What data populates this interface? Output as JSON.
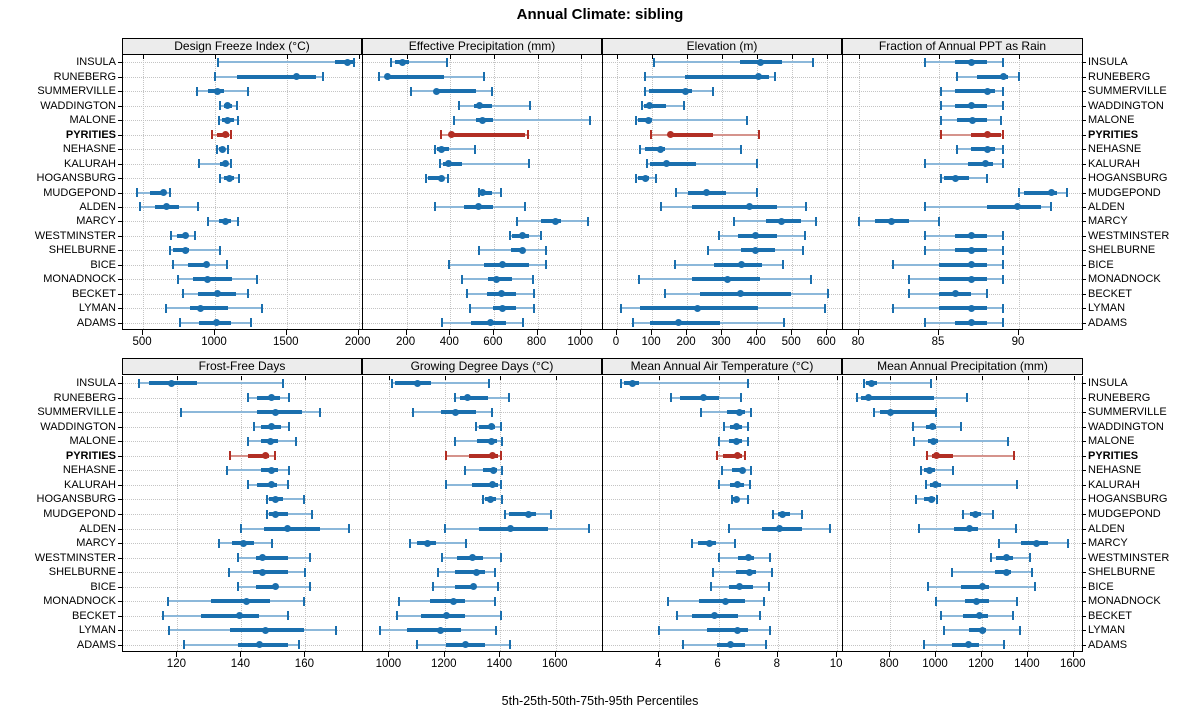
{
  "title": "Annual Climate: sibling",
  "caption": "5th-25th-50th-75th-95th Percentiles",
  "stations": [
    "INSULA",
    "RUNEBERG",
    "SUMMERVILLE",
    "WADDINGTON",
    "MALONE",
    "PYRITIES",
    "NEHASNE",
    "KALURAH",
    "HOGANSBURG",
    "MUDGEPOND",
    "ALDEN",
    "MARCY",
    "WESTMINSTER",
    "SHELBURNE",
    "BICE",
    "MONADNOCK",
    "BECKET",
    "LYMAN",
    "ADAMS"
  ],
  "highlight_station": "PYRITIES",
  "percentile_labels": [
    "5th",
    "25th",
    "50th",
    "75th",
    "95th"
  ],
  "colors": {
    "blue_main": "#1a6fae",
    "blue_light": "#8cb8da",
    "red_main": "#b22e24",
    "red_light": "#d5938c",
    "header_bg": "#ececec",
    "grid": "#c4c4c4",
    "border": "#000000"
  },
  "chart_data": [
    {
      "type": "scatter",
      "title": "Design Freeze Index (°C)",
      "row": 0,
      "col": 0,
      "xlim": [
        360,
        2030
      ],
      "xticks": [
        500,
        1000,
        1500,
        2000
      ],
      "values": [
        [
          1020,
          1835,
          1920,
          1960,
          1965
        ],
        [
          1000,
          1155,
          1570,
          1705,
          1755
        ],
        [
          875,
          950,
          1020,
          1060,
          1230
        ],
        [
          1035,
          1065,
          1090,
          1120,
          1155
        ],
        [
          1030,
          1050,
          1085,
          1130,
          1160
        ],
        [
          980,
          1015,
          1075,
          1095,
          1110
        ],
        [
          1015,
          1025,
          1050,
          1070,
          1090
        ],
        [
          890,
          1035,
          1070,
          1090,
          1110
        ],
        [
          1035,
          1060,
          1100,
          1130,
          1165
        ],
        [
          460,
          545,
          640,
          660,
          685
        ],
        [
          480,
          585,
          660,
          750,
          885
        ],
        [
          950,
          1025,
          1075,
          1110,
          1160
        ],
        [
          695,
          735,
          795,
          815,
          860
        ],
        [
          690,
          710,
          795,
          820,
          1035
        ],
        [
          710,
          815,
          940,
          950,
          1085
        ],
        [
          745,
          845,
          950,
          1120,
          1290
        ],
        [
          775,
          885,
          1015,
          1145,
          1230
        ],
        [
          660,
          825,
          900,
          1090,
          1330
        ],
        [
          755,
          890,
          1010,
          1110,
          1250
        ]
      ]
    },
    {
      "type": "scatter",
      "title": "Effective Precipitation (mm)",
      "row": 0,
      "col": 1,
      "xlim": [
        0,
        1100
      ],
      "xticks": [
        200,
        400,
        600,
        800,
        1000
      ],
      "values": [
        [
          129,
          147,
          182,
          212,
          383
        ],
        [
          75,
          105,
          110,
          373,
          556
        ],
        [
          218,
          330,
          336,
          516,
          591
        ],
        [
          438,
          508,
          534,
          590,
          764
        ],
        [
          418,
          516,
          546,
          598,
          1042
        ],
        [
          358,
          402,
          407,
          744,
          756
        ],
        [
          332,
          338,
          362,
          392,
          513
        ],
        [
          353,
          365,
          392,
          456,
          759
        ],
        [
          290,
          298,
          361,
          365,
          388
        ],
        [
          531,
          534,
          549,
          591,
          633
        ],
        [
          332,
          463,
          528,
          598,
          741
        ],
        [
          708,
          816,
          884,
          907,
          1030
        ],
        [
          674,
          684,
          729,
          759,
          816
        ],
        [
          531,
          678,
          729,
          744,
          839
        ],
        [
          392,
          553,
          639,
          759,
          839
        ],
        [
          456,
          573,
          613,
          684,
          779
        ],
        [
          478,
          568,
          633,
          699,
          783
        ],
        [
          489,
          594,
          639,
          699,
          786
        ],
        [
          362,
          493,
          583,
          654,
          734
        ]
      ]
    },
    {
      "type": "scatter",
      "title": "Elevation (m)",
      "row": 0,
      "col": 2,
      "xlim": [
        -40,
        645
      ],
      "xticks": [
        0,
        100,
        200,
        300,
        400,
        500,
        600
      ],
      "values": [
        [
          105,
          350,
          410,
          470,
          560
        ],
        [
          80,
          195,
          405,
          435,
          450
        ],
        [
          80,
          90,
          195,
          215,
          275
        ],
        [
          70,
          77,
          93,
          140,
          190
        ],
        [
          53,
          61,
          91,
          100,
          370
        ],
        [
          98,
          148,
          152,
          275,
          405
        ],
        [
          65,
          80,
          125,
          137,
          355
        ],
        [
          86,
          95,
          140,
          225,
          400
        ],
        [
          55,
          60,
          80,
          90,
          110
        ],
        [
          168,
          203,
          254,
          310,
          400
        ],
        [
          126,
          215,
          378,
          457,
          538
        ],
        [
          334,
          425,
          469,
          524,
          569
        ],
        [
          292,
          345,
          394,
          457,
          536
        ],
        [
          259,
          353,
          394,
          451,
          532
        ],
        [
          166,
          278,
          356,
          415,
          474
        ],
        [
          63,
          213,
          315,
          409,
          555
        ],
        [
          138,
          238,
          353,
          496,
          602
        ],
        [
          11,
          67,
          229,
          401,
          594
        ],
        [
          45,
          95,
          175,
          294,
          478
        ]
      ]
    },
    {
      "type": "scatter",
      "title": "Fraction of Annual PPT as Rain",
      "row": 0,
      "col": 3,
      "xlim": [
        79,
        94
      ],
      "xticks": [
        80,
        85,
        90
      ],
      "values": [
        [
          84.1,
          86.0,
          87.0,
          88.0,
          89.0
        ],
        [
          86.1,
          87.4,
          89.0,
          89.3,
          90.0
        ],
        [
          85.1,
          86.0,
          88.0,
          88.5,
          89.0
        ],
        [
          85.1,
          86.0,
          87.0,
          88.0,
          89.0
        ],
        [
          85.1,
          86.1,
          87.1,
          88.0,
          88.9
        ],
        [
          85.1,
          87.0,
          88.0,
          88.9,
          89.0
        ],
        [
          86.1,
          87.0,
          88.0,
          88.5,
          89.0
        ],
        [
          84.1,
          86.8,
          87.9,
          88.4,
          89.0
        ],
        [
          85.1,
          85.3,
          86.0,
          86.9,
          88.0
        ],
        [
          90.0,
          90.3,
          92.0,
          92.4,
          93.0
        ],
        [
          84.1,
          88.0,
          89.9,
          91.4,
          92.0
        ],
        [
          80.0,
          81.0,
          82.0,
          83.1,
          85.0
        ],
        [
          84.1,
          86.0,
          87.0,
          88.0,
          89.0
        ],
        [
          84.1,
          86.0,
          87.0,
          88.0,
          89.0
        ],
        [
          82.1,
          85.0,
          87.0,
          88.0,
          89.0
        ],
        [
          83.1,
          85.0,
          87.0,
          88.0,
          89.0
        ],
        [
          83.1,
          85.0,
          86.0,
          87.0,
          88.0
        ],
        [
          82.1,
          85.0,
          87.0,
          88.0,
          89.0
        ],
        [
          84.1,
          86.0,
          87.0,
          88.0,
          89.0
        ]
      ]
    },
    {
      "type": "scatter",
      "title": "Frost-Free Days",
      "row": 1,
      "col": 0,
      "xlim": [
        103,
        178
      ],
      "xticks": [
        120,
        140,
        160
      ],
      "values": [
        [
          108,
          111,
          118,
          126,
          153
        ],
        [
          142,
          145,
          149.5,
          152,
          155
        ],
        [
          121,
          145,
          150.5,
          159,
          164.5
        ],
        [
          144,
          146,
          149.5,
          152.5,
          155
        ],
        [
          142,
          146,
          149,
          151.5,
          157
        ],
        [
          136.5,
          142,
          147.5,
          148.5,
          150.5
        ],
        [
          135.5,
          146,
          149.5,
          151.5,
          155
        ],
        [
          142,
          145,
          149.5,
          151,
          154.5
        ],
        [
          148,
          148.5,
          150.5,
          153,
          159.5
        ],
        [
          148,
          148.5,
          150.5,
          154.5,
          162
        ],
        [
          140,
          147,
          154.5,
          164.5,
          173.5
        ],
        [
          133,
          137,
          140.5,
          144,
          149.5
        ],
        [
          139,
          144.5,
          146.5,
          154.5,
          161.5
        ],
        [
          136,
          143.5,
          146.5,
          154.5,
          160
        ],
        [
          139,
          144.5,
          150.5,
          151,
          161.5
        ],
        [
          117,
          130.5,
          141.5,
          149,
          159.5
        ],
        [
          115.5,
          127.5,
          139.5,
          145.5,
          154.5
        ],
        [
          117.5,
          136.5,
          147.5,
          159.5,
          169.5
        ],
        [
          122,
          139,
          145.5,
          154.5,
          158
        ]
      ]
    },
    {
      "type": "scatter",
      "title": "Growing Degree Days (°C)",
      "row": 1,
      "col": 1,
      "xlim": [
        905,
        1770
      ],
      "xticks": [
        1000,
        1200,
        1400,
        1600
      ],
      "values": [
        [
          1008,
          1021,
          1101,
          1149,
          1359
        ],
        [
          1236,
          1256,
          1281,
          1357,
          1431
        ],
        [
          1086,
          1185,
          1238,
          1312,
          1369
        ],
        [
          1312,
          1324,
          1369,
          1381,
          1402
        ],
        [
          1238,
          1315,
          1369,
          1387,
          1405
        ],
        [
          1205,
          1286,
          1373,
          1393,
          1402
        ],
        [
          1271,
          1336,
          1375,
          1387,
          1407
        ],
        [
          1205,
          1298,
          1373,
          1390,
          1402
        ],
        [
          1336,
          1345,
          1363,
          1383,
          1405
        ],
        [
          1417,
          1431,
          1500,
          1530,
          1581
        ],
        [
          1200,
          1324,
          1438,
          1571,
          1720
        ],
        [
          1074,
          1101,
          1137,
          1169,
          1276
        ],
        [
          1188,
          1244,
          1300,
          1336,
          1402
        ],
        [
          1176,
          1238,
          1315,
          1343,
          1379
        ],
        [
          1157,
          1236,
          1304,
          1312,
          1393
        ],
        [
          1033,
          1145,
          1232,
          1271,
          1381
        ],
        [
          1026,
          1113,
          1205,
          1274,
          1402
        ],
        [
          966,
          1065,
          1185,
          1260,
          1383
        ],
        [
          1098,
          1205,
          1276,
          1343,
          1435
        ]
      ]
    },
    {
      "type": "scatter",
      "title": "Mean Annual Air Temperature (°C)",
      "row": 1,
      "col": 2,
      "xlim": [
        2.1,
        10.2
      ],
      "xticks": [
        4,
        6,
        8,
        10
      ],
      "values": [
        [
          2.7,
          2.8,
          3.1,
          3.3,
          7.0
        ],
        [
          4.4,
          4.7,
          5.5,
          6.0,
          6.75
        ],
        [
          5.4,
          6.3,
          6.7,
          6.9,
          7.1
        ],
        [
          6.2,
          6.4,
          6.6,
          6.8,
          7.0
        ],
        [
          6.0,
          6.35,
          6.6,
          6.8,
          7.0
        ],
        [
          5.95,
          6.15,
          6.65,
          6.8,
          6.9
        ],
        [
          6.1,
          6.45,
          6.8,
          6.9,
          7.1
        ],
        [
          6.0,
          6.4,
          6.65,
          6.85,
          7.05
        ],
        [
          6.45,
          6.5,
          6.6,
          6.7,
          7.0
        ],
        [
          7.85,
          8.0,
          8.15,
          8.4,
          8.8
        ],
        [
          6.35,
          7.45,
          8.05,
          8.8,
          9.75
        ],
        [
          5.1,
          5.3,
          5.7,
          5.9,
          6.55
        ],
        [
          6.0,
          6.65,
          7.0,
          7.2,
          7.75
        ],
        [
          5.8,
          6.6,
          7.05,
          7.25,
          7.8
        ],
        [
          5.75,
          6.35,
          6.7,
          7.15,
          7.7
        ],
        [
          4.3,
          5.35,
          6.25,
          6.9,
          7.55
        ],
        [
          4.6,
          5.1,
          5.85,
          6.65,
          7.4
        ],
        [
          4.0,
          5.6,
          6.65,
          7.0,
          7.75
        ],
        [
          4.8,
          5.95,
          6.4,
          6.9,
          7.6
        ]
      ]
    },
    {
      "type": "scatter",
      "title": "Mean Annual Precipitation (mm)",
      "row": 1,
      "col": 3,
      "xlim": [
        595,
        1640
      ],
      "xticks": [
        800,
        1000,
        1200,
        1400,
        1600
      ],
      "values": [
        [
          685,
          695,
          717,
          745,
          980
        ],
        [
          655,
          672,
          705,
          990,
          1137
        ],
        [
          730,
          756,
          800,
          996,
          1001
        ],
        [
          900,
          957,
          986,
          1000,
          1108
        ],
        [
          905,
          963,
          989,
          1007,
          1312
        ],
        [
          960,
          982,
          1000,
          1076,
          1340
        ],
        [
          934,
          948,
          972,
          996,
          1073
        ],
        [
          957,
          972,
          996,
          1021,
          1352
        ],
        [
          913,
          948,
          982,
          996,
          1004
        ],
        [
          1117,
          1146,
          1171,
          1196,
          1248
        ],
        [
          924,
          1079,
          1146,
          1181,
          1350
        ],
        [
          1273,
          1370,
          1437,
          1486,
          1574
        ],
        [
          1239,
          1263,
          1309,
          1335,
          1411
        ],
        [
          1069,
          1258,
          1306,
          1327,
          1418
        ],
        [
          963,
          1108,
          1204,
          1229,
          1433
        ],
        [
          1000,
          1127,
          1175,
          1229,
          1352
        ],
        [
          1021,
          1117,
          1190,
          1225,
          1335
        ],
        [
          1036,
          1142,
          1204,
          1219,
          1364
        ],
        [
          948,
          1069,
          1142,
          1185,
          1295
        ]
      ]
    }
  ]
}
